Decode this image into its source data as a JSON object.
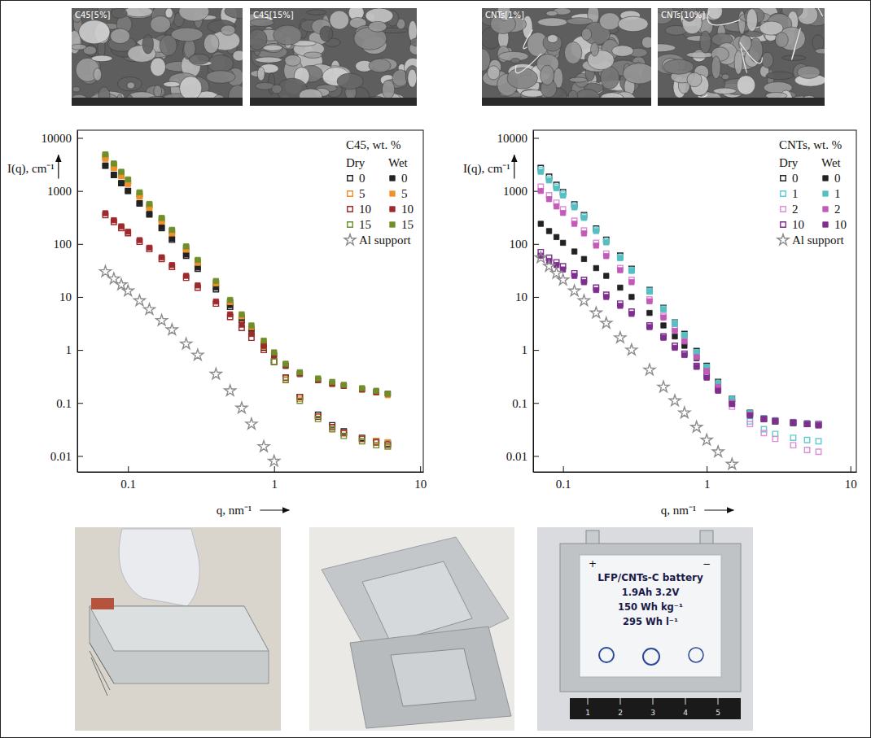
{
  "chart_data": [
    {
      "type": "scatter",
      "legend_title": "C45, wt. %",
      "x_label": "q, nm⁻¹",
      "y_label": "I(q), cm⁻¹",
      "log": true,
      "legend": "upper right",
      "xlim": [
        0.045,
        10.5
      ],
      "xticks": [
        0.1,
        1,
        10
      ],
      "ylim": [
        0.005,
        14000
      ],
      "yticks": [
        0.01,
        0.1,
        1,
        10,
        100,
        1000,
        10000
      ],
      "x": [
        0.07,
        0.08,
        0.09,
        0.1,
        0.12,
        0.14,
        0.17,
        0.2,
        0.25,
        0.3,
        0.4,
        0.5,
        0.6,
        0.7,
        0.85,
        1,
        1.2,
        1.5,
        2,
        2.5,
        3,
        4,
        5,
        6
      ],
      "series": [
        {
          "name": "0",
          "group": "Dry",
          "color": "#222222",
          "marker": "open-square",
          "values": [
            3000,
            2000,
            1400,
            1000,
            580,
            360,
            200,
            120,
            60,
            34,
            14,
            6.5,
            3.6,
            2.2,
            1.1,
            0.6,
            0.3,
            0.13,
            0.06,
            0.038,
            0.029,
            0.022,
            0.019,
            0.017
          ]
        },
        {
          "name": "5",
          "group": "Dry",
          "color": "#f0902a",
          "marker": "open-square",
          "values": [
            4200,
            2800,
            1950,
            1400,
            800,
            490,
            270,
            160,
            78,
            43,
            17,
            7.5,
            4,
            2.4,
            1.15,
            0.6,
            0.28,
            0.12,
            0.055,
            0.035,
            0.027,
            0.021,
            0.019,
            0.018
          ]
        },
        {
          "name": "10",
          "group": "Dry",
          "color": "#9e2a2b",
          "marker": "open-square",
          "values": [
            350,
            260,
            200,
            160,
            110,
            80,
            52,
            37,
            23,
            15,
            7.5,
            4.2,
            2.6,
            1.7,
            1.0,
            0.6,
            0.3,
            0.13,
            0.055,
            0.035,
            0.027,
            0.021,
            0.018,
            0.016
          ]
        },
        {
          "name": "15",
          "group": "Dry",
          "color": "#6f8f2a",
          "marker": "open-square",
          "values": [
            4600,
            3100,
            2150,
            1550,
            880,
            540,
            295,
            175,
            85,
            47,
            18.5,
            8,
            4.2,
            2.5,
            1.2,
            0.6,
            0.27,
            0.11,
            0.05,
            0.032,
            0.024,
            0.019,
            0.016,
            0.015
          ]
        },
        {
          "name": "0",
          "group": "Wet",
          "color": "#222222",
          "marker": "square",
          "values": [
            3000,
            2000,
            1400,
            1000,
            590,
            370,
            205,
            125,
            63,
            36,
            15,
            7,
            4,
            2.5,
            1.3,
            0.8,
            0.5,
            0.35,
            0.27,
            0.23,
            0.21,
            0.18,
            0.16,
            0.15
          ]
        },
        {
          "name": "5",
          "group": "Wet",
          "color": "#f0902a",
          "marker": "square",
          "values": [
            4000,
            2700,
            1900,
            1350,
            780,
            480,
            265,
            158,
            78,
            44,
            18,
            8,
            4.3,
            2.7,
            1.4,
            0.85,
            0.52,
            0.36,
            0.27,
            0.23,
            0.21,
            0.18,
            0.16,
            0.14
          ]
        },
        {
          "name": "10",
          "group": "Wet",
          "color": "#9e2a2b",
          "marker": "square",
          "values": [
            380,
            280,
            215,
            170,
            118,
            85,
            56,
            40,
            25,
            16.5,
            8.2,
            4.7,
            3,
            2,
            1.2,
            0.8,
            0.52,
            0.36,
            0.27,
            0.23,
            0.21,
            0.18,
            0.16,
            0.15
          ]
        },
        {
          "name": "15",
          "group": "Wet",
          "color": "#6f8f2a",
          "marker": "square",
          "values": [
            4900,
            3300,
            2300,
            1650,
            940,
            570,
            310,
            185,
            90,
            50,
            20,
            8.8,
            4.7,
            2.9,
            1.5,
            0.9,
            0.55,
            0.38,
            0.29,
            0.25,
            0.22,
            0.19,
            0.17,
            0.15
          ]
        },
        {
          "name": "Al support",
          "color": "#8c8c8c",
          "marker": "open-star",
          "values": [
            30,
            22,
            17,
            13,
            8.5,
            5.8,
            3.6,
            2.4,
            1.3,
            0.8,
            0.35,
            0.17,
            0.08,
            0.04,
            0.015,
            0.008,
            null,
            null,
            null,
            null,
            null,
            null,
            null,
            null
          ]
        }
      ]
    },
    {
      "type": "scatter",
      "legend_title": "CNTs, wt. %",
      "x_label": "q, nm⁻¹",
      "y_label": "I(q), cm⁻¹",
      "log": true,
      "legend": "upper right",
      "xlim": [
        0.062,
        11
      ],
      "xticks": [
        0.1,
        1,
        10
      ],
      "ylim": [
        0.005,
        14000
      ],
      "yticks": [
        0.01,
        0.1,
        1,
        10,
        100,
        1000,
        10000
      ],
      "x": [
        0.07,
        0.08,
        0.09,
        0.1,
        0.12,
        0.14,
        0.17,
        0.2,
        0.25,
        0.3,
        0.4,
        0.5,
        0.6,
        0.7,
        0.85,
        1,
        1.2,
        1.5,
        2,
        2.5,
        3,
        4,
        5,
        6
      ],
      "series": [
        {
          "name": "0",
          "group": "Dry",
          "color": "#222222",
          "marker": "open-square",
          "values": [
            2700,
            1850,
            1300,
            950,
            560,
            350,
            195,
            120,
            60,
            34,
            13.5,
            6.2,
            3.3,
            2,
            0.95,
            0.5,
            0.25,
            0.12,
            0.065,
            0.05,
            0.045,
            0.042,
            0.04,
            0.04
          ]
        },
        {
          "name": "1",
          "group": "Dry",
          "color": "#62cbd2",
          "marker": "open-square",
          "values": [
            2500,
            1700,
            1200,
            880,
            520,
            330,
            185,
            112,
            56,
            32,
            13,
            6,
            3.2,
            1.9,
            0.9,
            0.47,
            0.22,
            0.1,
            0.045,
            0.032,
            0.026,
            0.022,
            0.02,
            0.019
          ]
        },
        {
          "name": "2",
          "group": "Dry",
          "color": "#dc8fd8",
          "marker": "open-square",
          "values": [
            1200,
            830,
            600,
            450,
            275,
            180,
            105,
            66,
            35,
            21,
            9,
            4.4,
            2.5,
            1.5,
            0.75,
            0.4,
            0.19,
            0.085,
            0.04,
            0.027,
            0.021,
            0.016,
            0.013,
            0.012
          ]
        },
        {
          "name": "10",
          "group": "Dry",
          "color": "#7e2f8e",
          "marker": "open-square",
          "values": [
            70,
            55,
            45,
            38,
            28,
            21,
            15,
            11,
            7.5,
            5.3,
            2.9,
            1.8,
            1.2,
            0.85,
            0.5,
            0.32,
            0.18,
            0.1,
            0.06,
            0.05,
            0.046,
            0.043,
            0.04,
            0.038
          ]
        },
        {
          "name": "0",
          "group": "Wet",
          "color": "#222222",
          "marker": "square",
          "values": [
            240,
            175,
            135,
            105,
            72,
            52,
            35,
            25,
            15,
            10,
            5,
            2.9,
            1.8,
            1.2,
            0.7,
            0.42,
            0.22,
            0.11,
            0.065,
            0.052,
            0.047,
            0.043,
            0.041,
            0.04
          ]
        },
        {
          "name": "1",
          "group": "Wet",
          "color": "#56bfc2",
          "marker": "square",
          "values": [
            2300,
            1580,
            1120,
            820,
            490,
            310,
            175,
            107,
            54,
            31,
            12.5,
            5.8,
            3.1,
            1.9,
            0.9,
            0.48,
            0.24,
            0.12,
            0.065,
            0.052,
            0.047,
            0.044,
            0.042,
            0.041
          ]
        },
        {
          "name": "2",
          "group": "Wet",
          "color": "#c35ab8",
          "marker": "square",
          "values": [
            1000,
            700,
            510,
            385,
            240,
            158,
            93,
            59,
            32,
            19,
            8.3,
            4.1,
            2.3,
            1.45,
            0.73,
            0.4,
            0.2,
            0.1,
            0.06,
            0.05,
            0.046,
            0.043,
            0.041,
            0.04
          ]
        },
        {
          "name": "10",
          "group": "Wet",
          "color": "#7e2f8e",
          "marker": "square",
          "values": [
            60,
            48,
            40,
            33,
            25,
            19,
            13.5,
            10,
            6.8,
            4.8,
            2.7,
            1.7,
            1.1,
            0.8,
            0.48,
            0.3,
            0.17,
            0.095,
            0.058,
            0.05,
            0.046,
            0.043,
            0.04,
            0.038
          ]
        },
        {
          "name": "Al support",
          "color": "#8c8c8c",
          "marker": "open-star",
          "values": [
            55,
            38,
            28,
            21,
            13,
            8.5,
            5,
            3.2,
            1.7,
            1,
            0.42,
            0.2,
            0.11,
            0.065,
            0.035,
            0.02,
            0.012,
            0.007,
            null,
            null,
            null,
            null,
            null,
            null
          ]
        }
      ]
    }
  ],
  "images": {
    "sem": [
      "C45[5%]",
      "C45[15%]",
      "CNTs[1%]",
      "CNTs[10%]"
    ],
    "battery_label": [
      "LFP/CNTs-C battery",
      "1.9Ah 3.2V",
      "150 Wh kg⁻¹",
      "295 Wh l⁻¹"
    ],
    "terminal_signs": [
      "+",
      "−"
    ],
    "ruler_labels": [
      1,
      2,
      3,
      4,
      5
    ]
  }
}
